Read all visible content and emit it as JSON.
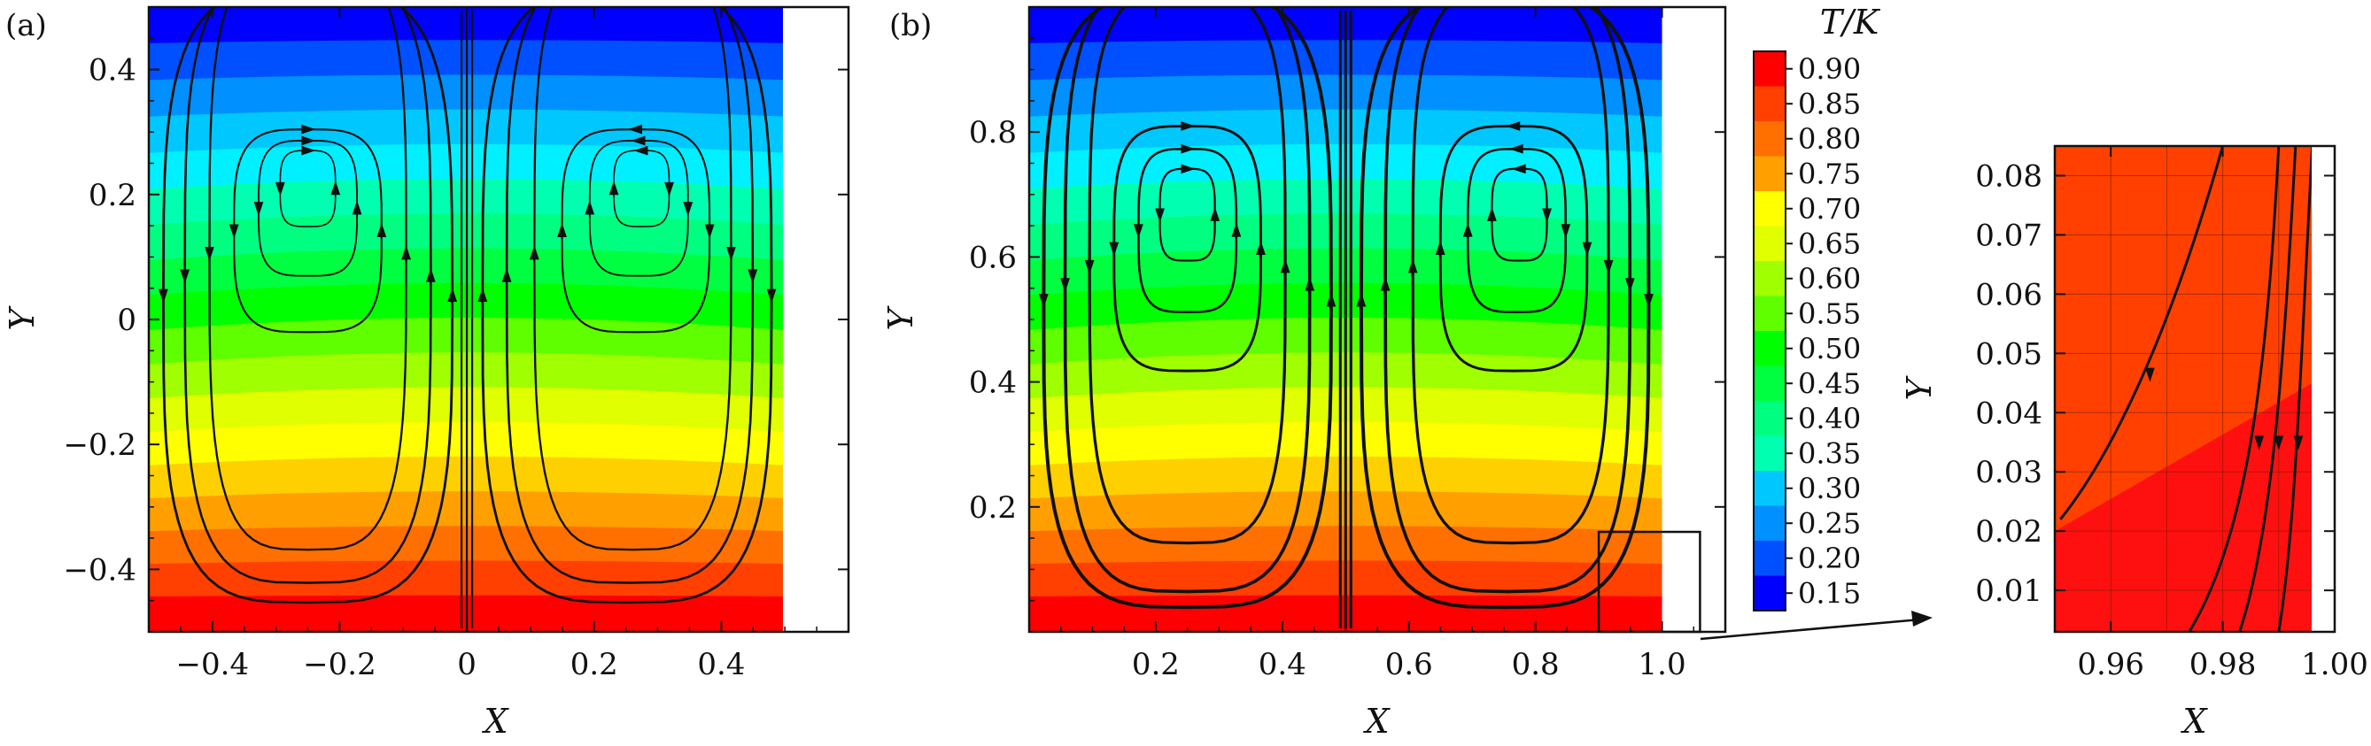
{
  "colors": {
    "temperature_scale": [
      "#0000ff",
      "#0050ff",
      "#0090ff",
      "#00c8ff",
      "#00f0ff",
      "#00ffb0",
      "#00ff80",
      "#00ff40",
      "#00ff00",
      "#60ff00",
      "#a0ff00",
      "#e0ff00",
      "#ffff00",
      "#ffd000",
      "#ffa000",
      "#ff7000",
      "#ff4000",
      "#ff0000"
    ],
    "streamline": "#111111"
  },
  "chart_data": [
    {
      "type": "contour",
      "panel_label": "(a)",
      "xlabel": "X",
      "ylabel": "Y",
      "xlim": [
        -0.5,
        0.6
      ],
      "ylim": [
        -0.5,
        0.5
      ],
      "field_xlim": [
        -0.5,
        0.5
      ],
      "xticks": [
        -0.4,
        -0.2,
        0,
        0.2,
        0.4
      ],
      "xtick_labels": [
        "−0.4",
        "−0.2",
        "0",
        "0.2",
        "0.4"
      ],
      "yticks": [
        -0.4,
        -0.2,
        0,
        0.2,
        0.4
      ],
      "ytick_labels": [
        "−0.4",
        "−0.2",
        "0",
        "0.2",
        "0.4"
      ],
      "vortex_centers": [
        [
          -0.25,
          0.25
        ],
        [
          0.28,
          0.25
        ]
      ],
      "temperature_range": [
        0.15,
        0.9
      ]
    },
    {
      "type": "contour",
      "panel_label": "(b)",
      "xlabel": "X",
      "ylabel": "Y",
      "xlim": [
        0,
        1.1
      ],
      "ylim": [
        0,
        1.0
      ],
      "field_xlim": [
        0,
        1.0
      ],
      "xticks": [
        0.2,
        0.4,
        0.6,
        0.8,
        1.0
      ],
      "xtick_labels": [
        "0.2",
        "0.4",
        "0.6",
        "0.8",
        "1.0"
      ],
      "yticks": [
        0.2,
        0.4,
        0.6,
        0.8
      ],
      "ytick_labels": [
        "0.2",
        "0.4",
        "0.6",
        "0.8"
      ],
      "vortex_centers": [
        [
          0.25,
          0.7
        ],
        [
          0.78,
          0.7
        ]
      ],
      "inset_box": {
        "x": [
          0.9,
          1.06
        ],
        "y": [
          0.0,
          0.16
        ]
      },
      "temperature_range": [
        0.15,
        0.9
      ]
    },
    {
      "type": "colorbar",
      "title": "T/K",
      "levels": [
        0.9,
        0.85,
        0.8,
        0.75,
        0.7,
        0.65,
        0.6,
        0.55,
        0.5,
        0.45,
        0.4,
        0.35,
        0.3,
        0.25,
        0.2,
        0.15
      ],
      "level_labels": [
        "0.90",
        "0.85",
        "0.80",
        "0.75",
        "0.70",
        "0.65",
        "0.60",
        "0.55",
        "0.50",
        "0.45",
        "0.40",
        "0.35",
        "0.30",
        "0.25",
        "0.20",
        "0.15"
      ]
    },
    {
      "type": "contour",
      "panel_label": "",
      "xlabel": "X",
      "ylabel": "Y",
      "xlim": [
        0.95,
        1.0
      ],
      "ylim": [
        0.003,
        0.085
      ],
      "field_xlim": [
        0.95,
        0.996
      ],
      "xticks": [
        0.96,
        0.98,
        1.0
      ],
      "xtick_labels": [
        "0.96",
        "0.98",
        "1.00"
      ],
      "yticks": [
        0.01,
        0.02,
        0.03,
        0.04,
        0.05,
        0.06,
        0.07,
        0.08
      ],
      "ytick_labels": [
        "0.01",
        "0.02",
        "0.03",
        "0.04",
        "0.05",
        "0.06",
        "0.07",
        "0.08"
      ],
      "grid": true
    }
  ]
}
